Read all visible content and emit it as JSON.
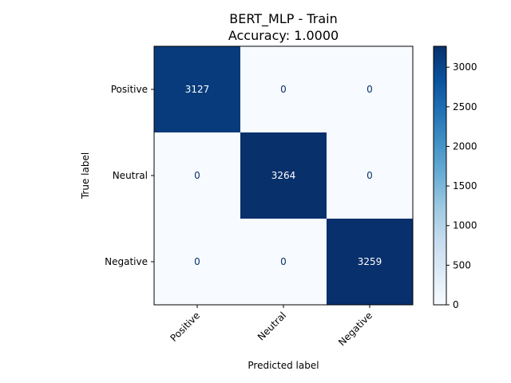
{
  "chart_data": {
    "type": "heatmap",
    "title_line1": "BERT_MLP - Train",
    "title_line2": "Accuracy: 1.0000",
    "xlabel": "Predicted label",
    "ylabel": "True label",
    "x_categories": [
      "Positive",
      "Neutral",
      "Negative"
    ],
    "y_categories": [
      "Positive",
      "Neutral",
      "Negative"
    ],
    "matrix": [
      [
        3127,
        0,
        0
      ],
      [
        0,
        3264,
        0
      ],
      [
        0,
        0,
        3259
      ]
    ],
    "colormap": "Blues",
    "color_range": [
      0,
      3264
    ],
    "colorbar_ticks": [
      0,
      500,
      1000,
      1500,
      2000,
      2500,
      3000
    ],
    "colors": {
      "low": "#f7fbff",
      "high": "#08306b",
      "text_on_dark": "#ffffff",
      "text_on_light": "#08306b"
    }
  }
}
